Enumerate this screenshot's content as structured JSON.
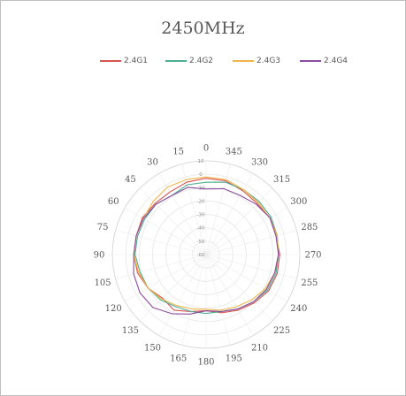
{
  "chart_data": {
    "type": "radar",
    "title": "2450MHz",
    "radial_ticks": [
      "10",
      "0",
      "-10",
      "-20",
      "-30",
      "-40",
      "-50",
      "-60"
    ],
    "radial_range": [
      -60,
      10
    ],
    "angle_labels": [
      "0",
      "15",
      "30",
      "45",
      "60",
      "75",
      "90",
      "105",
      "120",
      "135",
      "150",
      "165",
      "180",
      "195",
      "210",
      "225",
      "240",
      "255",
      "270",
      "285",
      "300",
      "315",
      "330",
      "345"
    ],
    "angle_direction": "counterclockwise",
    "grid": true,
    "legend_position": "top",
    "series": [
      {
        "name": "2.4G1",
        "color": "#d9534f",
        "values": [
          -3,
          -4,
          -6,
          -6,
          -5,
          -6,
          -6,
          -7,
          -10,
          -14,
          -12,
          -16,
          -18,
          -15,
          -12,
          -9,
          -6,
          -5,
          -5,
          -6,
          -5,
          -6,
          -5,
          -3
        ]
      },
      {
        "name": "2.4G2",
        "color": "#4cae92",
        "values": [
          -6,
          -6,
          -9,
          -7,
          -7,
          -7,
          -7,
          -9,
          -10,
          -12,
          -15,
          -16,
          -16,
          -16,
          -13,
          -10,
          -7,
          -6,
          -6,
          -5,
          -4,
          -4,
          -4,
          -4
        ]
      },
      {
        "name": "2.4G3",
        "color": "#f0b54a",
        "values": [
          -2,
          -2,
          -2,
          -4,
          -6,
          -6,
          -6,
          -8,
          -10,
          -13,
          -16,
          -18,
          -19,
          -17,
          -15,
          -12,
          -9,
          -7,
          -6,
          -5,
          -5,
          -5,
          -4,
          -2
        ]
      },
      {
        "name": "2.4G4",
        "color": "#8a4c9e",
        "values": [
          -11,
          -8,
          -9,
          -7,
          -6,
          -6,
          -6,
          -4,
          -3,
          -4,
          -9,
          -14,
          -18,
          -16,
          -13,
          -10,
          -8,
          -7,
          -6,
          -6,
          -5,
          -7,
          -9,
          -9
        ]
      }
    ]
  }
}
